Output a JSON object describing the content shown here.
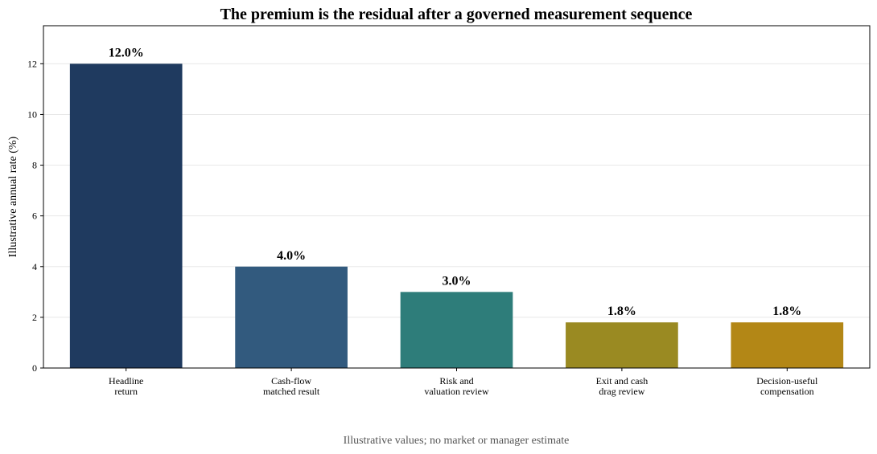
{
  "chart_data": {
    "type": "bar",
    "title": "The premium is the residual after a governed measurement sequence",
    "xlabel": "",
    "ylabel": "Illustrative annual rate (%)",
    "ylim": [
      0,
      13.5
    ],
    "yticks": [
      0,
      2,
      4,
      6,
      8,
      10,
      12
    ],
    "grid": true,
    "categories": [
      [
        "Headline",
        "return"
      ],
      [
        "Cash-flow",
        "matched result"
      ],
      [
        "Risk and",
        "valuation review"
      ],
      [
        "Exit and cash",
        "drag review"
      ],
      [
        "Decision-useful",
        "compensation"
      ]
    ],
    "values": [
      12.0,
      4.0,
      3.0,
      1.8,
      1.8
    ],
    "data_labels": [
      "12.0%",
      "4.0%",
      "3.0%",
      "1.8%",
      "1.8%"
    ],
    "colors": [
      "#1f3a5f",
      "#325a7e",
      "#2e7d7a",
      "#9a8a22",
      "#b38716"
    ],
    "note": "Illustrative values; no market or manager estimate"
  }
}
